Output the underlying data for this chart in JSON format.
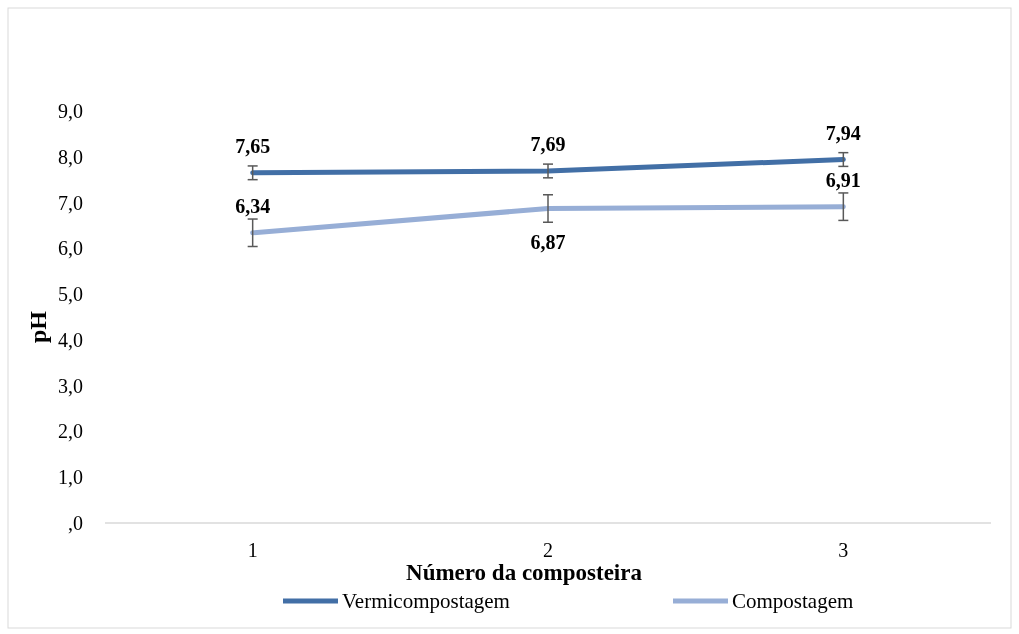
{
  "chart_data": {
    "type": "line",
    "xlabel": "Número da composteira",
    "ylabel": "pH",
    "categories": [
      "1",
      "2",
      "3"
    ],
    "ylim": [
      0,
      9
    ],
    "yticks": [
      {
        "value": 0,
        "label": ",0"
      },
      {
        "value": 1,
        "label": "1,0"
      },
      {
        "value": 2,
        "label": "2,0"
      },
      {
        "value": 3,
        "label": "3,0"
      },
      {
        "value": 4,
        "label": "4,0"
      },
      {
        "value": 5,
        "label": "5,0"
      },
      {
        "value": 6,
        "label": "6,0"
      },
      {
        "value": 7,
        "label": "7,0"
      },
      {
        "value": 8,
        "label": "8,0"
      },
      {
        "value": 9,
        "label": "9,0"
      }
    ],
    "series": [
      {
        "name": "Vermicompostagem",
        "color": "#426fa6",
        "values": [
          7.65,
          7.69,
          7.94
        ],
        "errors": [
          0.15,
          0.15,
          0.15
        ],
        "value_labels": [
          "7,65",
          "7,69",
          "7,94"
        ]
      },
      {
        "name": "Compostagem",
        "color": "#97aed6",
        "values": [
          6.34,
          6.87,
          6.91
        ],
        "errors": [
          0.3,
          0.3,
          0.3
        ],
        "value_labels": [
          "6,34",
          "6,87",
          "6,91"
        ]
      }
    ],
    "grid": false,
    "legend": "bottom",
    "marker": "none",
    "line_style": "solid"
  }
}
